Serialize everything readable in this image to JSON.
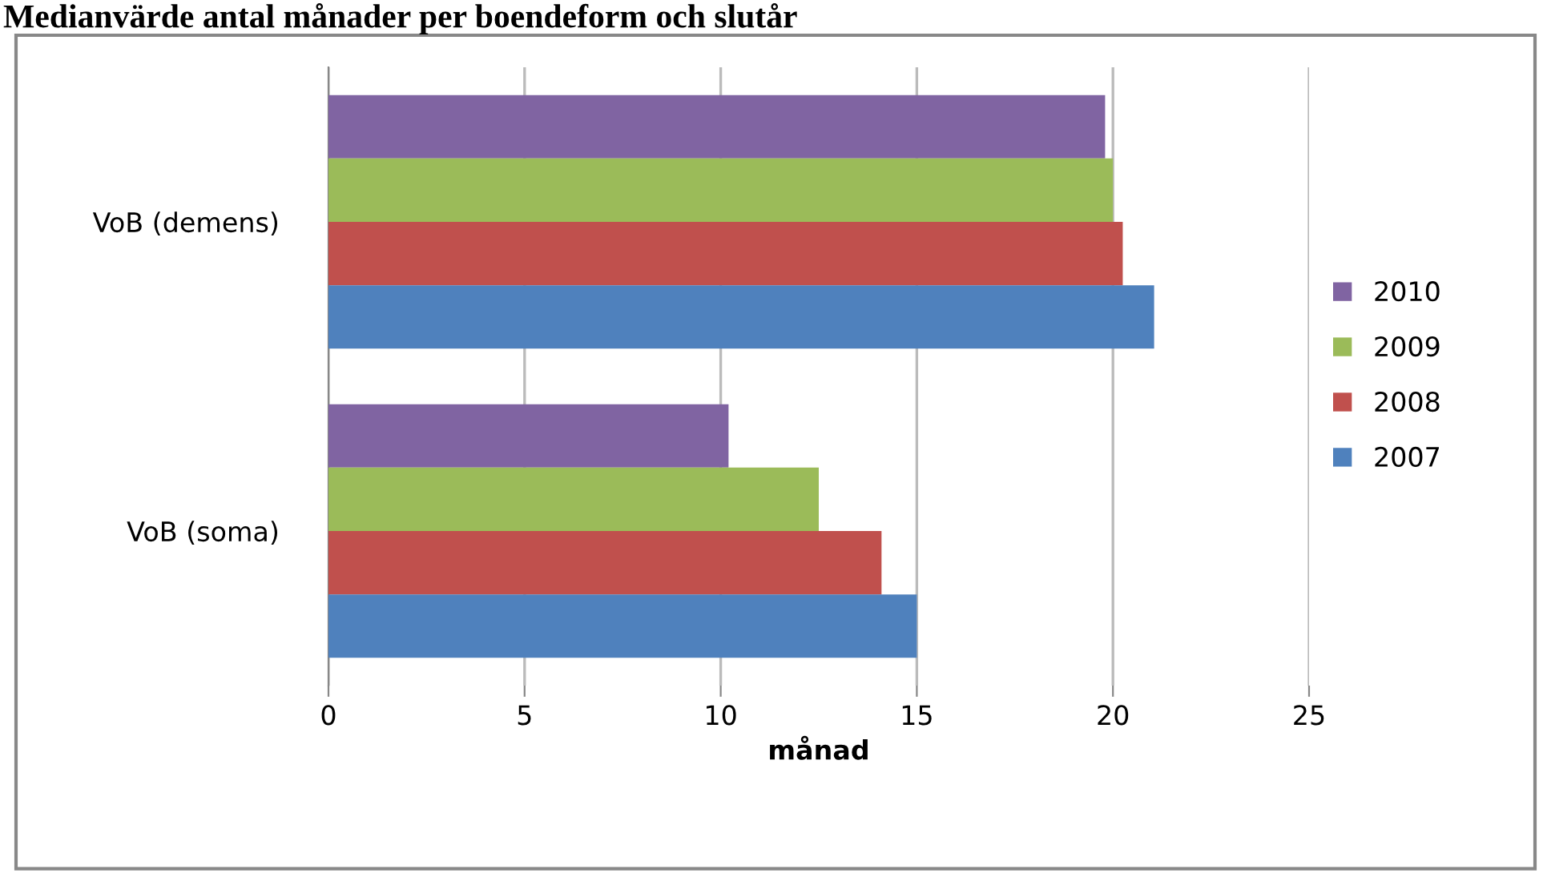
{
  "chart_data": {
    "type": "bar",
    "orientation": "horizontal",
    "title": "Medianvärde antal månader per boendeform och slutår",
    "xlabel": "månad",
    "categories": [
      "VoB (demens)",
      "VoB (soma)"
    ],
    "series": [
      {
        "name": "2010",
        "color": "#8064a2",
        "values": [
          19.8,
          10.2
        ]
      },
      {
        "name": "2009",
        "color": "#9bbb59",
        "values": [
          20.0,
          12.5
        ]
      },
      {
        "name": "2008",
        "color": "#c0504d",
        "values": [
          20.25,
          14.1
        ]
      },
      {
        "name": "2007",
        "color": "#4f81bd",
        "values": [
          21.05,
          15.0
        ]
      }
    ],
    "xlim": [
      0,
      25
    ],
    "xticks": [
      0,
      5,
      10,
      15,
      20,
      25
    ],
    "grid": "x",
    "legend": "right"
  }
}
